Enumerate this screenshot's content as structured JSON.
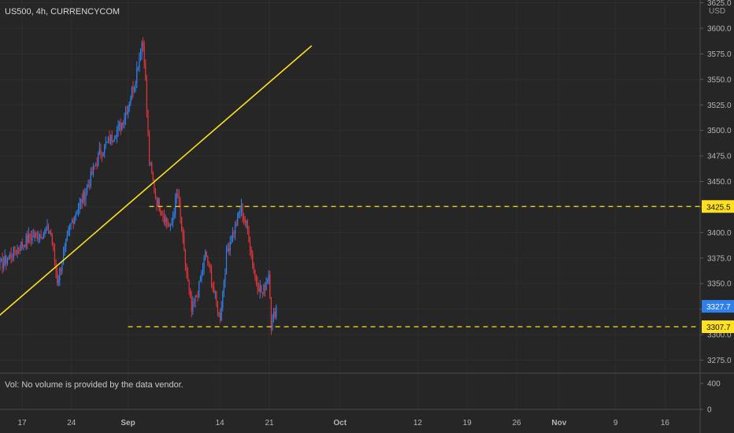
{
  "header": {
    "symbol": "US500, 4h, CURRENCYCOM",
    "currency": "USD"
  },
  "volume_pane": {
    "message": "Vol: No volume is provided by the data vendor.",
    "ticks": [
      "400",
      "0"
    ]
  },
  "colors": {
    "background": "#262626",
    "up": "#2f80ed",
    "down": "#e5343a",
    "trendline": "#ffe11f",
    "level_label": "#ffe11f",
    "last_price_label": "#2f80ed",
    "axis_text": "#b5b5b5"
  },
  "chart_data": {
    "type": "candlestick",
    "title": "US500, 4h, CURRENCYCOM",
    "y_axis": {
      "side": "right",
      "unit": "USD",
      "ylim": [
        3262,
        3637
      ],
      "ticks": [
        3275.0,
        3300.0,
        3325.0,
        3350.0,
        3375.0,
        3400.0,
        3425.0,
        3450.0,
        3475.0,
        3500.0,
        3525.0,
        3550.0,
        3575.0,
        3600.0,
        3625.0
      ]
    },
    "x_axis": {
      "tick_labels": [
        "17",
        "24",
        "Sep",
        "14",
        "21",
        "Oct",
        "12",
        "19",
        "26",
        "Nov",
        "9",
        "16"
      ]
    },
    "levels": [
      {
        "label": "3425.5",
        "value": 3425.5,
        "style": "dashed"
      },
      {
        "label": "3307.7",
        "value": 3307.7,
        "style": "dashed"
      }
    ],
    "last_price": {
      "label": "3327.7",
      "value": 3327.7
    },
    "trendline": {
      "from": {
        "date": "Aug 10",
        "price": 3296
      },
      "to": {
        "date": "Sep 27",
        "price": 3583
      }
    },
    "candle_keypoints": [
      {
        "date": "Aug 10",
        "price": 3380
      },
      {
        "date": "Aug 14",
        "price": 3368
      },
      {
        "date": "Aug 18",
        "price": 3395
      },
      {
        "date": "Aug 21",
        "price": 3402
      },
      {
        "date": "Aug 22",
        "price": 3352
      },
      {
        "date": "Aug 24",
        "price": 3410
      },
      {
        "date": "Aug 26",
        "price": 3440
      },
      {
        "date": "Aug 28",
        "price": 3478
      },
      {
        "date": "Aug 31",
        "price": 3505
      },
      {
        "date": "Sep 1",
        "price": 3525
      },
      {
        "date": "Sep 2",
        "price": 3550
      },
      {
        "date": "Sep 3",
        "price": 3588
      },
      {
        "date": "Sep 3",
        "price": 3580
      },
      {
        "date": "Sep 4",
        "price": 3470
      },
      {
        "date": "Sep 5",
        "price": 3432
      },
      {
        "date": "Sep 7",
        "price": 3403
      },
      {
        "date": "Sep 8",
        "price": 3440
      },
      {
        "date": "Sep 9",
        "price": 3375
      },
      {
        "date": "Sep 10",
        "price": 3322
      },
      {
        "date": "Sep 11",
        "price": 3345
      },
      {
        "date": "Sep 12",
        "price": 3380
      },
      {
        "date": "Sep 14",
        "price": 3315
      },
      {
        "date": "Sep 15",
        "price": 3382
      },
      {
        "date": "Sep 16",
        "price": 3402
      },
      {
        "date": "Sep 17",
        "price": 3425
      },
      {
        "date": "Sep 18",
        "price": 3400
      },
      {
        "date": "Sep 19",
        "price": 3355
      },
      {
        "date": "Sep 20",
        "price": 3340
      },
      {
        "date": "Sep 21",
        "price": 3362
      },
      {
        "date": "Sep 21",
        "price": 3309
      },
      {
        "date": "Sep 22",
        "price": 3327.7
      }
    ]
  }
}
